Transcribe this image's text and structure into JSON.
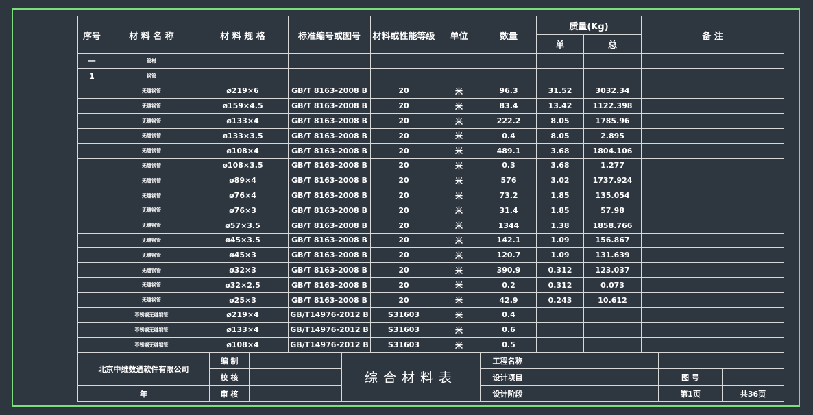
{
  "colors": {
    "background": "#2e3640",
    "frame": "#7be07b",
    "lines": "#d8d8d8"
  },
  "header": {
    "seq": "序号",
    "name": "材 料 名 称",
    "spec": "材 料 规 格",
    "standard": "标准编号或图号",
    "grade": "材料或性能等级",
    "unit": "单位",
    "qty": "数量",
    "mass": "质量(Kg)",
    "mass_unit": "单",
    "mass_total": "总",
    "remarks": "备 注"
  },
  "rows": [
    {
      "seq": "一",
      "name": "管材",
      "spec": "",
      "standard": "",
      "grade": "",
      "unit": "",
      "qty": "",
      "unit_mass": "",
      "total_mass": ""
    },
    {
      "seq": "1",
      "name": "钢管",
      "spec": "",
      "standard": "",
      "grade": "",
      "unit": "",
      "qty": "",
      "unit_mass": "",
      "total_mass": ""
    },
    {
      "seq": "",
      "name": "无缝钢管",
      "spec": "ø219×6",
      "standard": "GB/T 8163-2008 B",
      "grade": "20",
      "unit": "米",
      "qty": "96.3",
      "unit_mass": "31.52",
      "total_mass": "3032.34"
    },
    {
      "seq": "",
      "name": "无缝钢管",
      "spec": "ø159×4.5",
      "standard": "GB/T 8163-2008 B",
      "grade": "20",
      "unit": "米",
      "qty": "83.4",
      "unit_mass": "13.42",
      "total_mass": "1122.398"
    },
    {
      "seq": "",
      "name": "无缝钢管",
      "spec": "ø133×4",
      "standard": "GB/T 8163-2008 B",
      "grade": "20",
      "unit": "米",
      "qty": "222.2",
      "unit_mass": "8.05",
      "total_mass": "1785.96"
    },
    {
      "seq": "",
      "name": "无缝钢管",
      "spec": "ø133×3.5",
      "standard": "GB/T 8163-2008 B",
      "grade": "20",
      "unit": "米",
      "qty": "0.4",
      "unit_mass": "8.05",
      "total_mass": "2.895"
    },
    {
      "seq": "",
      "name": "无缝钢管",
      "spec": "ø108×4",
      "standard": "GB/T 8163-2008 B",
      "grade": "20",
      "unit": "米",
      "qty": "489.1",
      "unit_mass": "3.68",
      "total_mass": "1804.106"
    },
    {
      "seq": "",
      "name": "无缝钢管",
      "spec": "ø108×3.5",
      "standard": "GB/T 8163-2008 B",
      "grade": "20",
      "unit": "米",
      "qty": "0.3",
      "unit_mass": "3.68",
      "total_mass": "1.277"
    },
    {
      "seq": "",
      "name": "无缝钢管",
      "spec": "ø89×4",
      "standard": "GB/T 8163-2008 B",
      "grade": "20",
      "unit": "米",
      "qty": "576",
      "unit_mass": "3.02",
      "total_mass": "1737.924"
    },
    {
      "seq": "",
      "name": "无缝钢管",
      "spec": "ø76×4",
      "standard": "GB/T 8163-2008 B",
      "grade": "20",
      "unit": "米",
      "qty": "73.2",
      "unit_mass": "1.85",
      "total_mass": "135.054"
    },
    {
      "seq": "",
      "name": "无缝钢管",
      "spec": "ø76×3",
      "standard": "GB/T 8163-2008 B",
      "grade": "20",
      "unit": "米",
      "qty": "31.4",
      "unit_mass": "1.85",
      "total_mass": "57.98"
    },
    {
      "seq": "",
      "name": "无缝钢管",
      "spec": "ø57×3.5",
      "standard": "GB/T 8163-2008 B",
      "grade": "20",
      "unit": "米",
      "qty": "1344",
      "unit_mass": "1.38",
      "total_mass": "1858.766"
    },
    {
      "seq": "",
      "name": "无缝钢管",
      "spec": "ø45×3.5",
      "standard": "GB/T 8163-2008 B",
      "grade": "20",
      "unit": "米",
      "qty": "142.1",
      "unit_mass": "1.09",
      "total_mass": "156.867"
    },
    {
      "seq": "",
      "name": "无缝钢管",
      "spec": "ø45×3",
      "standard": "GB/T 8163-2008 B",
      "grade": "20",
      "unit": "米",
      "qty": "120.7",
      "unit_mass": "1.09",
      "total_mass": "131.639"
    },
    {
      "seq": "",
      "name": "无缝钢管",
      "spec": "ø32×3",
      "standard": "GB/T 8163-2008 B",
      "grade": "20",
      "unit": "米",
      "qty": "390.9",
      "unit_mass": "0.312",
      "total_mass": "123.037"
    },
    {
      "seq": "",
      "name": "无缝钢管",
      "spec": "ø32×2.5",
      "standard": "GB/T 8163-2008 B",
      "grade": "20",
      "unit": "米",
      "qty": "0.2",
      "unit_mass": "0.312",
      "total_mass": "0.073"
    },
    {
      "seq": "",
      "name": "无缝钢管",
      "spec": "ø25×3",
      "standard": "GB/T 8163-2008 B",
      "grade": "20",
      "unit": "米",
      "qty": "42.9",
      "unit_mass": "0.243",
      "total_mass": "10.612"
    },
    {
      "seq": "",
      "name": "不锈钢无缝钢管",
      "spec": "ø219×4",
      "standard": "GB/T14976-2012 B",
      "grade": "S31603",
      "unit": "米",
      "qty": "0.4",
      "unit_mass": "",
      "total_mass": ""
    },
    {
      "seq": "",
      "name": "不锈钢无缝钢管",
      "spec": "ø133×4",
      "standard": "GB/T14976-2012 B",
      "grade": "S31603",
      "unit": "米",
      "qty": "0.6",
      "unit_mass": "",
      "total_mass": ""
    },
    {
      "seq": "",
      "name": "不锈钢无缝钢管",
      "spec": "ø108×4",
      "standard": "GB/T14976-2012 B",
      "grade": "S31603",
      "unit": "米",
      "qty": "0.5",
      "unit_mass": "",
      "total_mass": ""
    }
  ],
  "footer": {
    "company": "北京中维数通软件有限公司",
    "year": "年",
    "compiled": "编 制",
    "checked": "校 核",
    "reviewed": "审 核",
    "title": "综合材料表",
    "project_name": "工程名称",
    "design_item": "设计项目",
    "design_stage": "设计阶段",
    "drawing_no": "图 号",
    "page": "第1页",
    "total_pages": "共36页"
  }
}
